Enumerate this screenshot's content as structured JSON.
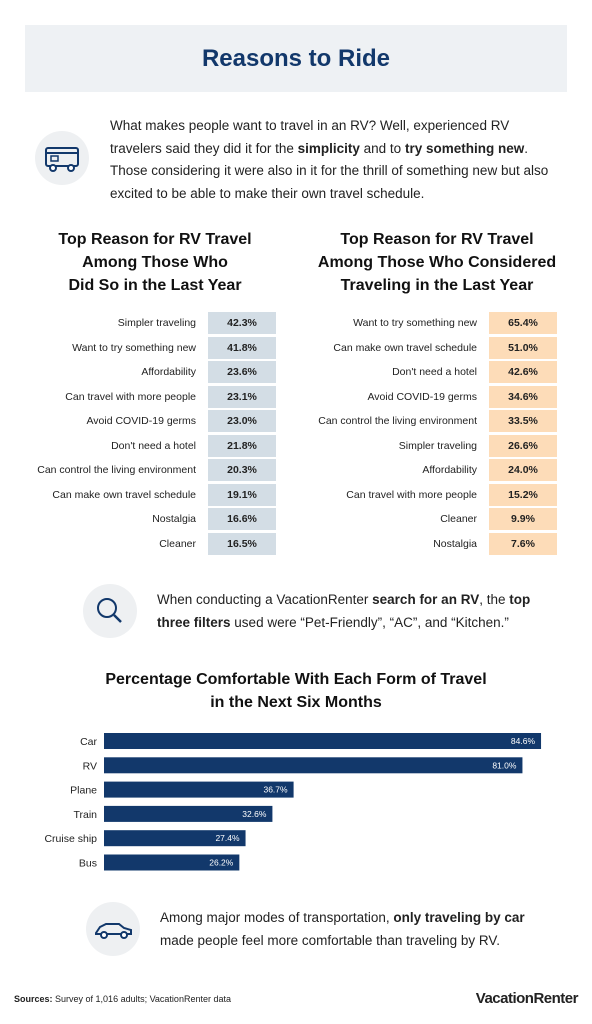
{
  "header": {
    "title": "Reasons to Ride"
  },
  "intro": {
    "parts": [
      {
        "text": "What makes people want to travel in an RV? Well, experienced RV travelers said they did it for the",
        "bold": false
      },
      {
        "text": "simplicity",
        "bold": true
      },
      {
        "text": "and to",
        "bold": false
      },
      {
        "text": "try something new",
        "bold": true
      },
      {
        "text": ". Those considering it were also in it for the thrill of something new but also excited to be able to make their own travel schedule.",
        "bold": false
      }
    ]
  },
  "tables": [
    {
      "title": [
        "Top Reason for RV Travel",
        "Among Those Who",
        "Did So in the Last Year"
      ],
      "color": "#d3dde5",
      "rows": [
        [
          "Simpler traveling",
          "42.3%"
        ],
        [
          "Want to try something new",
          "41.8%"
        ],
        [
          "Affordability",
          "23.6%"
        ],
        [
          "Can travel with more people",
          "23.1%"
        ],
        [
          "Avoid COVID-19 germs",
          "23.0%"
        ],
        [
          "Don't need a hotel",
          "21.8%"
        ],
        [
          "Can control the living environment",
          "20.3%"
        ],
        [
          "Can make own travel schedule",
          "19.1%"
        ],
        [
          "Nostalgia",
          "16.6%"
        ],
        [
          "Cleaner",
          "16.5%"
        ]
      ]
    },
    {
      "title": [
        "Top Reason for RV Travel",
        "Among Those Who Considered",
        "Traveling in the Last Year"
      ],
      "color": "#fddcb8",
      "rows": [
        [
          "Want to try something new",
          "65.4%"
        ],
        [
          "Can make own travel schedule",
          "51.0%"
        ],
        [
          "Don't need a hotel",
          "42.6%"
        ],
        [
          "Avoid COVID-19 germs",
          "34.6%"
        ],
        [
          "Can control the living environment",
          "33.5%"
        ],
        [
          "Simpler traveling",
          "26.6%"
        ],
        [
          "Affordability",
          "24.0%"
        ],
        [
          "Can travel with more people",
          "15.2%"
        ],
        [
          "Cleaner",
          "9.9%"
        ],
        [
          "Nostalgia",
          "7.6%"
        ]
      ]
    }
  ],
  "search_note": {
    "parts": [
      {
        "text": "When conducting a VacationRenter",
        "bold": false
      },
      {
        "text": "search for an RV",
        "bold": true
      },
      {
        "text": ", the",
        "bold": false
      },
      {
        "text": "top three filters",
        "bold": true
      },
      {
        "text": "used were “Pet-Friendly”, “AC”, and “Kitchen.”",
        "bold": false
      }
    ]
  },
  "chart_data": {
    "type": "bar",
    "orientation": "horizontal",
    "title": [
      "Percentage Comfortable With Each Form of Travel",
      "in the Next Six Months"
    ],
    "categories": [
      "Car",
      "RV",
      "Plane",
      "Train",
      "Cruise ship",
      "Bus"
    ],
    "values": [
      84.6,
      81.0,
      36.7,
      32.6,
      27.4,
      26.2
    ],
    "value_labels": [
      "84.6%",
      "81.0%",
      "36.7%",
      "32.6%",
      "27.4%",
      "26.2%"
    ],
    "color": "#12386b"
  },
  "car_note": {
    "parts": [
      {
        "text": "Among major modes of transportation,",
        "bold": false
      },
      {
        "text": "only traveling by car",
        "bold": true
      },
      {
        "text": "made people feel more comfortable than traveling by RV.",
        "bold": false
      }
    ]
  },
  "footer": {
    "sources_label": "Sources:",
    "sources": "Survey of 1,016 adults; VacationRenter data",
    "logo": "VacationRenter"
  }
}
